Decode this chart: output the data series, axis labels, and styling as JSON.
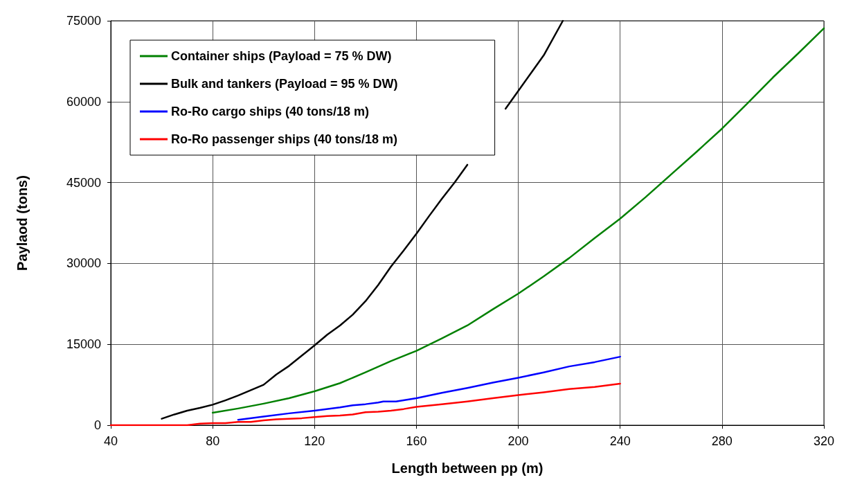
{
  "chart_data": {
    "type": "line",
    "xlabel": "Length between pp (m)",
    "ylabel": "Paylaod (tons)",
    "xlim": [
      40,
      320
    ],
    "xticks": [
      40,
      80,
      120,
      160,
      200,
      240,
      280,
      320
    ],
    "ylim": [
      0,
      75000
    ],
    "yticks": [
      0,
      15000,
      30000,
      45000,
      60000,
      75000
    ],
    "grid": true,
    "legend": "top left",
    "marker": "none",
    "line_style": "solid",
    "series": [
      {
        "name": "Container ships (Payload = 75 % DW)",
        "color": "#008000",
        "x": [
          80,
          90,
          100,
          110,
          120,
          130,
          140,
          150,
          160,
          170,
          180,
          190,
          200,
          210,
          220,
          230,
          240,
          250,
          260,
          270,
          280,
          290,
          300,
          310,
          320
        ],
        "values": [
          2300,
          3100,
          4000,
          5000,
          6300,
          7800,
          9800,
          11900,
          13800,
          16100,
          18500,
          21500,
          24400,
          27600,
          31000,
          34700,
          38300,
          42300,
          46500,
          50700,
          55000,
          59700,
          64500,
          69000,
          73600
        ]
      },
      {
        "name": "Bulk and tankers (Payload = 95 % DW)",
        "color": "#000000",
        "x": [
          60,
          65,
          70,
          75,
          80,
          85,
          90,
          95,
          100,
          105,
          110,
          115,
          120,
          125,
          130,
          135,
          140,
          145,
          150,
          155,
          160,
          165,
          170,
          175,
          180,
          185,
          190,
          195,
          200,
          205,
          210,
          217.5
        ],
        "values": [
          1200,
          2000,
          2700,
          3200,
          3800,
          4600,
          5500,
          6500,
          7500,
          9400,
          11000,
          12900,
          14800,
          16800,
          18500,
          20500,
          23000,
          26000,
          29400,
          32400,
          35500,
          38800,
          42000,
          45000,
          48300,
          null,
          null,
          58700,
          62000,
          65300,
          68600,
          75000
        ]
      },
      {
        "name": "Ro-Ro cargo ships (40 tons/18 m)",
        "color": "#0000ff",
        "x": [
          90,
          100,
          110,
          120,
          130,
          135,
          140,
          145,
          147,
          152,
          160,
          170,
          180,
          190,
          200,
          210,
          220,
          230,
          240
        ],
        "values": [
          1000,
          1600,
          2200,
          2700,
          3300,
          3700,
          3900,
          4200,
          4400,
          4400,
          5000,
          6000,
          6900,
          7900,
          8800,
          9800,
          10900,
          11700,
          12700
        ]
      },
      {
        "name": "Ro-Ro passenger ships (40 tons/18 m)",
        "color": "#ff0000",
        "x": [
          40,
          50,
          60,
          70,
          75,
          80,
          85,
          90,
          95,
          100,
          105,
          110,
          115,
          120,
          125,
          130,
          135,
          140,
          145,
          150,
          155,
          160,
          170,
          180,
          190,
          200,
          210,
          220,
          230,
          240
        ],
        "values": [
          0,
          0,
          0,
          0,
          300,
          400,
          400,
          600,
          600,
          900,
          1100,
          1200,
          1300,
          1500,
          1700,
          1800,
          2000,
          2400,
          2500,
          2700,
          3000,
          3400,
          3900,
          4400,
          5000,
          5600,
          6100,
          6700,
          7100,
          7700
        ]
      }
    ]
  }
}
